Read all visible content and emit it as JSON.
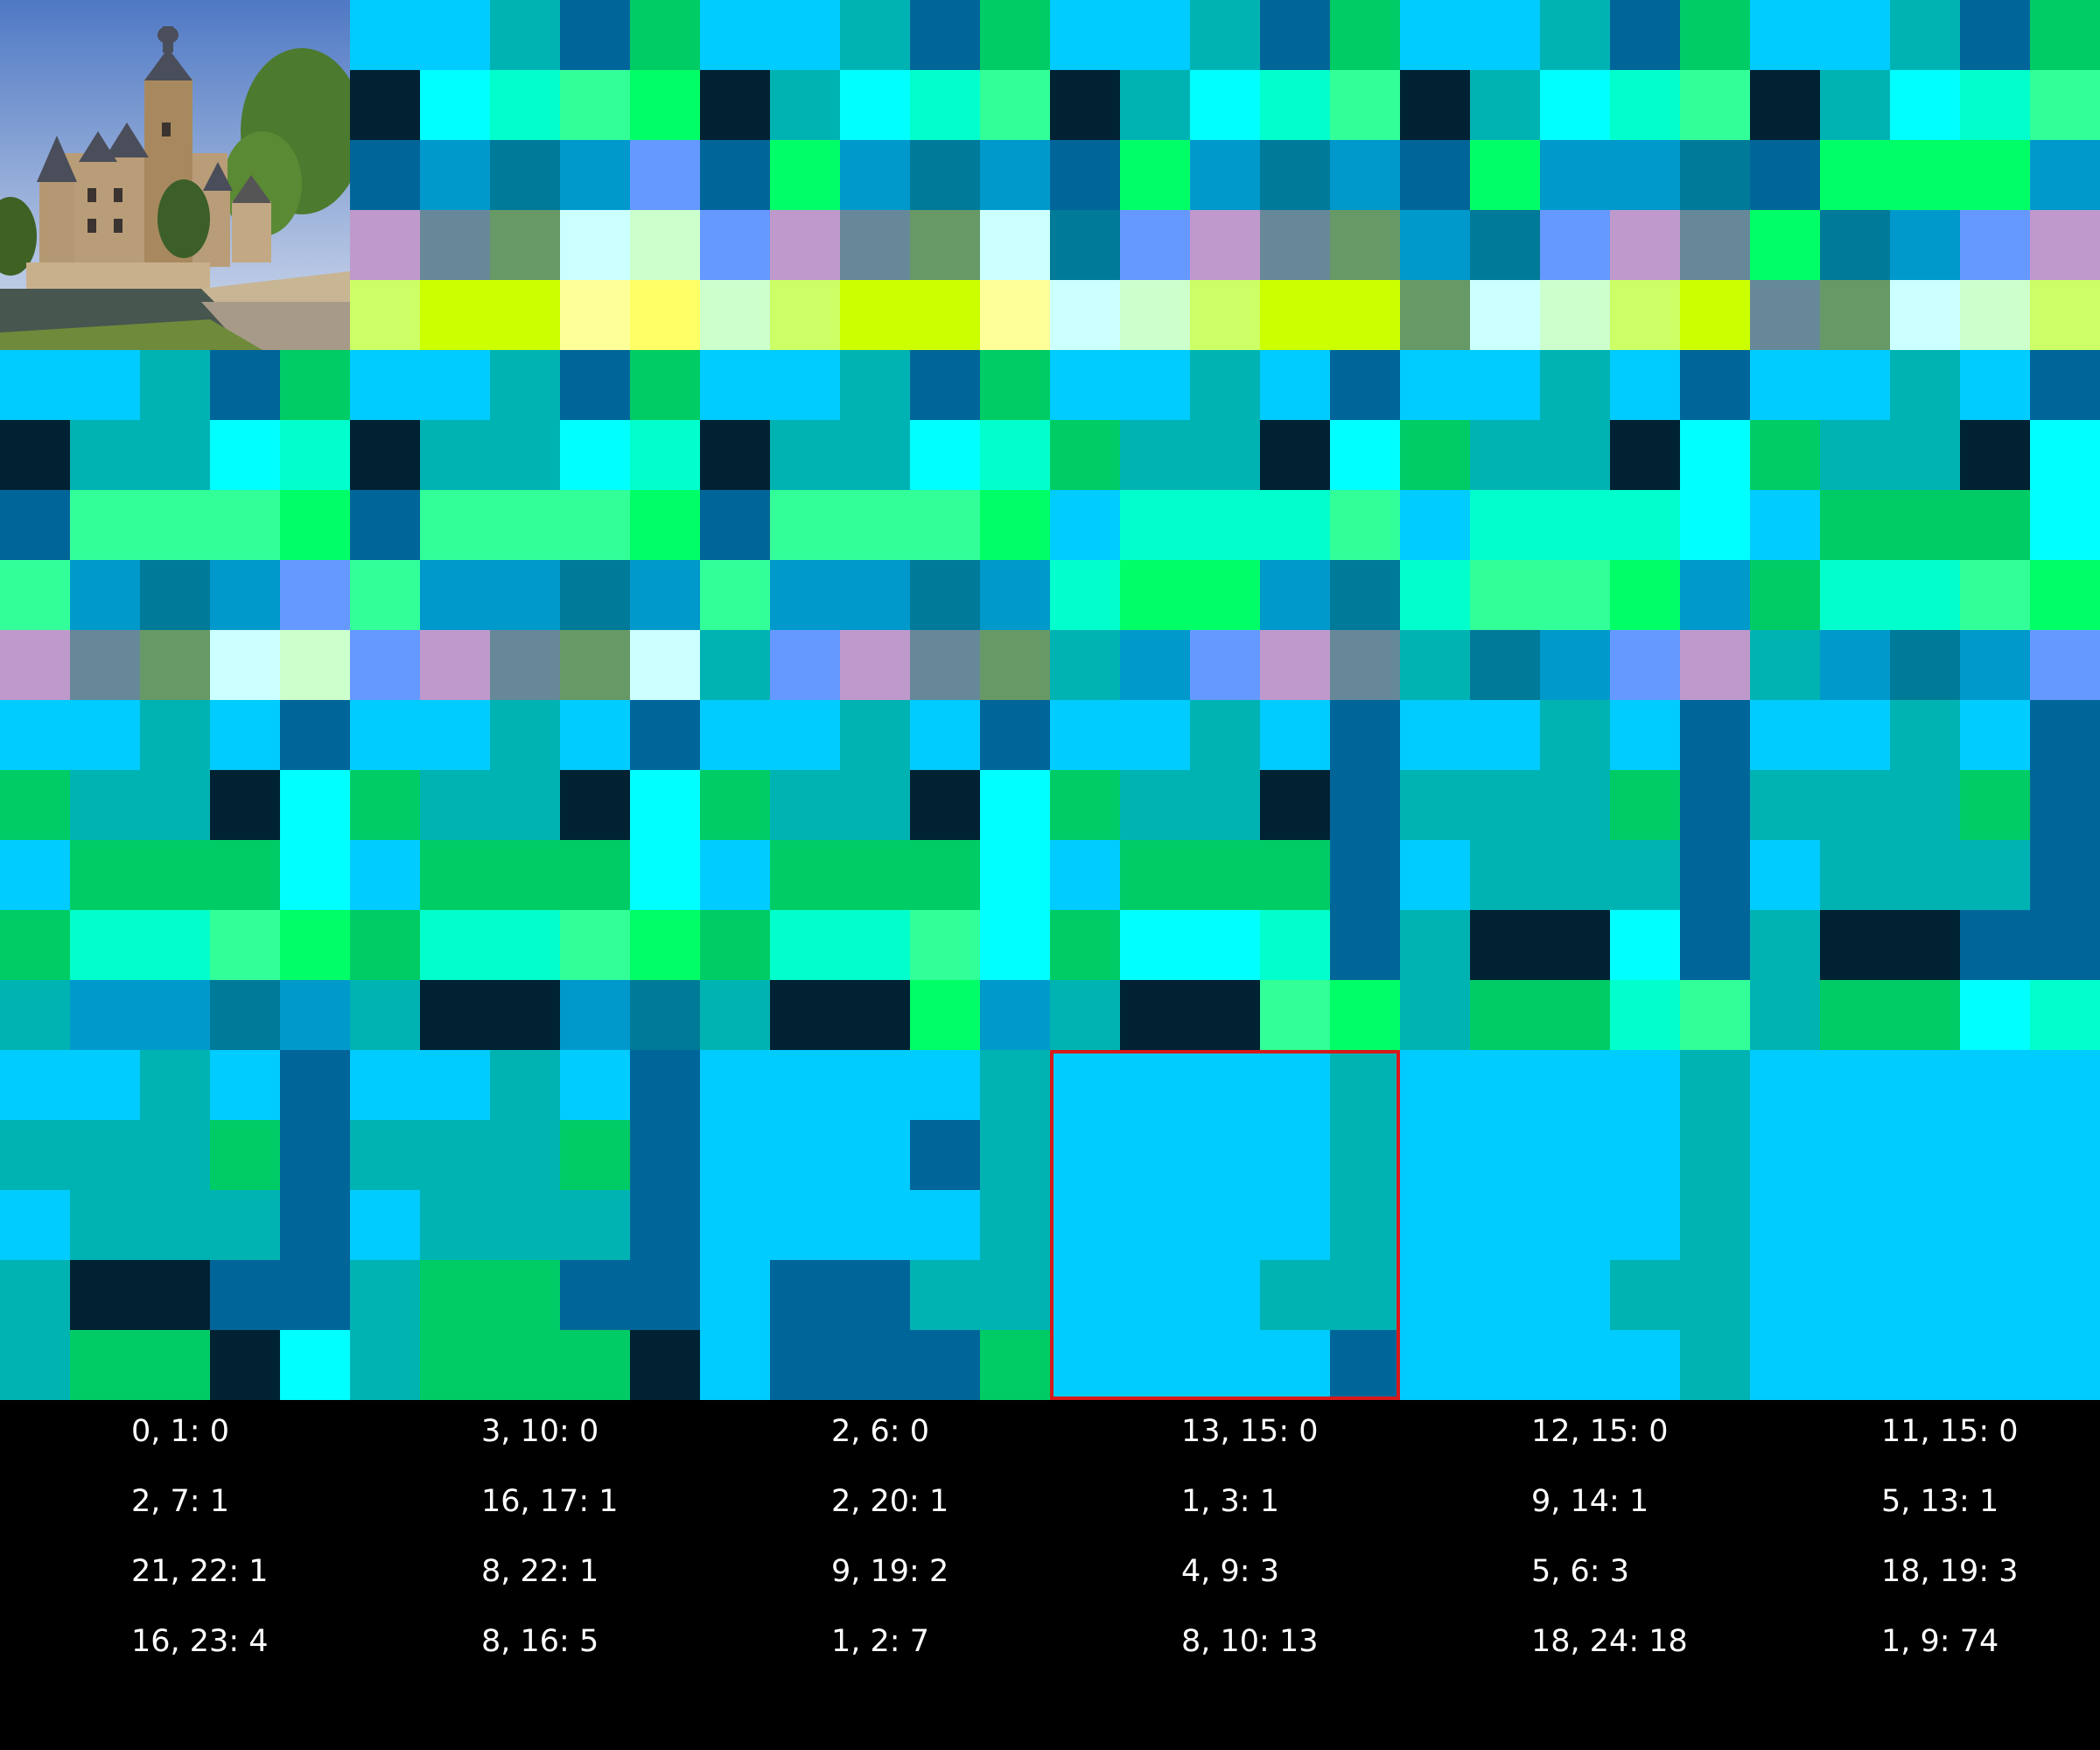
{
  "palette": [
    "#00ccff",
    "#00b3b3",
    "#006699",
    "#00cc66",
    "#002233",
    "#00ffff",
    "#00ffcc",
    "#33ff99",
    "#00ff66",
    "#0099cc",
    "#007a99",
    "#6699ff",
    "#c099cc",
    "#668899",
    "#669966",
    "#ccffff",
    "#ccffcc",
    "#ccff66",
    "#ccff00",
    "#ffff99",
    "#ffff66",
    "#a6e6e6",
    "#008080"
  ],
  "grid_cols": 30,
  "grid_rows": 20,
  "grid": [
    [
      -1,
      -1,
      -1,
      -1,
      -1,
      0,
      0,
      1,
      2,
      3,
      0,
      0,
      1,
      2,
      3,
      0,
      0,
      1,
      2,
      3,
      0,
      0,
      1,
      2,
      3,
      0,
      0,
      1,
      2,
      3
    ],
    [
      -1,
      -1,
      -1,
      -1,
      -1,
      4,
      5,
      6,
      7,
      8,
      4,
      1,
      5,
      6,
      7,
      4,
      1,
      5,
      6,
      7,
      4,
      1,
      5,
      6,
      7,
      4,
      1,
      5,
      6,
      7
    ],
    [
      -1,
      -1,
      -1,
      -1,
      -1,
      2,
      9,
      10,
      9,
      11,
      2,
      8,
      9,
      10,
      9,
      2,
      8,
      9,
      10,
      9,
      2,
      8,
      9,
      9,
      10,
      2,
      8,
      8,
      8,
      9
    ],
    [
      -1,
      -1,
      -1,
      -1,
      -1,
      12,
      13,
      14,
      15,
      16,
      11,
      12,
      13,
      14,
      15,
      10,
      11,
      12,
      13,
      14,
      9,
      10,
      11,
      12,
      13,
      8,
      10,
      9,
      11,
      12
    ],
    [
      -1,
      -1,
      -1,
      -1,
      -1,
      17,
      18,
      18,
      19,
      20,
      16,
      17,
      18,
      18,
      19,
      15,
      16,
      17,
      18,
      18,
      14,
      15,
      16,
      17,
      18,
      13,
      14,
      15,
      16,
      17
    ],
    [
      0,
      0,
      1,
      2,
      3,
      0,
      0,
      1,
      2,
      3,
      0,
      0,
      1,
      2,
      3,
      0,
      0,
      1,
      0,
      2,
      0,
      0,
      1,
      0,
      2,
      0,
      0,
      1,
      0,
      2
    ],
    [
      4,
      1,
      1,
      5,
      6,
      4,
      1,
      1,
      5,
      6,
      4,
      1,
      1,
      5,
      6,
      3,
      1,
      1,
      4,
      5,
      3,
      1,
      1,
      4,
      5,
      3,
      1,
      1,
      4,
      5
    ],
    [
      2,
      7,
      7,
      7,
      8,
      2,
      7,
      7,
      7,
      8,
      2,
      7,
      7,
      7,
      8,
      0,
      6,
      6,
      6,
      7,
      0,
      6,
      6,
      6,
      5,
      0,
      3,
      3,
      3,
      5
    ],
    [
      7,
      9,
      10,
      9,
      11,
      7,
      9,
      9,
      10,
      9,
      7,
      9,
      9,
      10,
      9,
      6,
      8,
      8,
      9,
      10,
      6,
      7,
      7,
      8,
      9,
      3,
      6,
      6,
      7,
      8
    ],
    [
      12,
      13,
      14,
      15,
      16,
      11,
      12,
      13,
      14,
      15,
      1,
      11,
      12,
      13,
      14,
      1,
      9,
      11,
      12,
      13,
      1,
      10,
      9,
      11,
      12,
      1,
      9,
      10,
      9,
      11
    ],
    [
      0,
      0,
      1,
      0,
      2,
      0,
      0,
      1,
      0,
      2,
      0,
      0,
      1,
      0,
      2,
      0,
      0,
      1,
      0,
      2,
      0,
      0,
      1,
      0,
      2,
      0,
      0,
      1,
      0,
      2
    ],
    [
      3,
      1,
      1,
      4,
      5,
      3,
      1,
      1,
      4,
      5,
      3,
      1,
      1,
      4,
      5,
      3,
      1,
      1,
      4,
      2,
      1,
      1,
      1,
      3,
      2,
      1,
      1,
      1,
      3,
      2
    ],
    [
      0,
      3,
      3,
      3,
      5,
      0,
      3,
      3,
      3,
      5,
      0,
      3,
      3,
      3,
      5,
      0,
      3,
      3,
      3,
      2,
      0,
      1,
      1,
      1,
      2,
      0,
      1,
      1,
      1,
      2
    ],
    [
      3,
      6,
      6,
      7,
      8,
      3,
      6,
      6,
      7,
      8,
      3,
      6,
      6,
      7,
      5,
      3,
      5,
      5,
      6,
      2,
      1,
      4,
      4,
      5,
      2,
      1,
      4,
      4,
      2,
      2
    ],
    [
      1,
      9,
      9,
      10,
      9,
      1,
      4,
      4,
      9,
      10,
      1,
      4,
      4,
      8,
      9,
      1,
      4,
      4,
      7,
      8,
      1,
      3,
      3,
      6,
      7,
      1,
      3,
      3,
      5,
      6
    ],
    [
      0,
      0,
      1,
      0,
      2,
      0,
      0,
      1,
      0,
      2,
      0,
      0,
      0,
      0,
      1,
      0,
      0,
      0,
      0,
      1,
      0,
      0,
      0,
      0,
      1,
      0,
      0,
      0,
      0,
      0
    ],
    [
      1,
      1,
      1,
      3,
      2,
      1,
      1,
      1,
      3,
      2,
      0,
      0,
      0,
      2,
      1,
      0,
      0,
      0,
      0,
      1,
      0,
      0,
      0,
      0,
      1,
      0,
      0,
      0,
      0,
      0
    ],
    [
      0,
      1,
      1,
      1,
      2,
      0,
      1,
      1,
      1,
      2,
      0,
      0,
      0,
      0,
      1,
      0,
      0,
      0,
      0,
      1,
      0,
      0,
      0,
      0,
      1,
      0,
      0,
      0,
      0,
      0
    ],
    [
      1,
      4,
      4,
      2,
      2,
      1,
      3,
      3,
      2,
      2,
      0,
      2,
      2,
      1,
      1,
      0,
      0,
      0,
      1,
      1,
      0,
      0,
      0,
      1,
      1,
      0,
      0,
      0,
      0,
      0
    ],
    [
      1,
      3,
      3,
      4,
      5,
      1,
      3,
      3,
      3,
      4,
      0,
      2,
      2,
      2,
      3,
      0,
      0,
      0,
      0,
      2,
      0,
      0,
      0,
      0,
      1,
      0,
      0,
      0,
      0,
      0
    ]
  ],
  "highlight": {
    "col": 15,
    "row": 15,
    "span_cols": 5,
    "span_rows": 5,
    "color": "#d6191b"
  },
  "photo": {
    "sky_top": "#5f86c9",
    "sky_bottom": "#c7d4ea",
    "stone": "#b79a76",
    "foliage": "#3f6b2a",
    "water": "#4a5a55"
  },
  "labels": [
    [
      "0, 1: 0",
      "3, 10: 0",
      "2, 6: 0",
      "13, 15: 0",
      "12, 15: 0",
      "11, 15: 0"
    ],
    [
      "2, 7: 1",
      "16, 17: 1",
      "2, 20: 1",
      "1, 3: 1",
      "9, 14: 1",
      "5, 13: 1"
    ],
    [
      "21, 22: 1",
      "8, 22: 1",
      "9, 19: 2",
      "4, 9: 3",
      "5, 6: 3",
      "18, 19: 3"
    ],
    [
      "16, 23: 4",
      "8, 16: 5",
      "1, 2: 7",
      "8, 10: 13",
      "18, 24: 18",
      "1, 9: 74"
    ]
  ]
}
